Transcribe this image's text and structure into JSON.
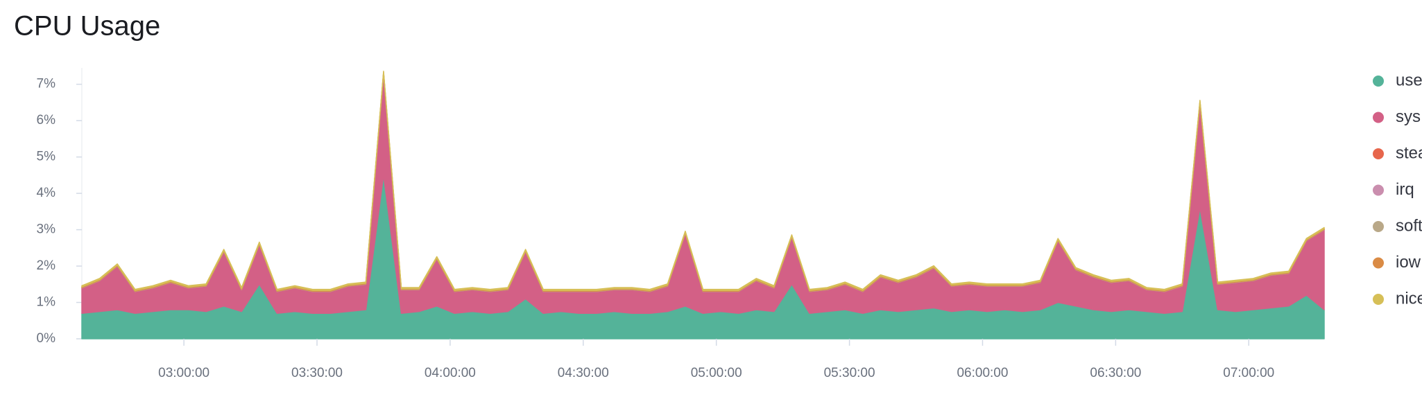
{
  "chart_data": {
    "type": "stacked-area",
    "title": "CPU Usage",
    "x": [
      "02:37:00",
      "02:41:00",
      "02:45:00",
      "02:49:00",
      "02:53:00",
      "02:57:00",
      "03:01:00",
      "03:05:00",
      "03:09:00",
      "03:13:00",
      "03:17:00",
      "03:21:00",
      "03:25:00",
      "03:29:00",
      "03:33:00",
      "03:37:00",
      "03:41:00",
      "03:45:00",
      "03:49:00",
      "03:53:00",
      "03:57:00",
      "04:01:00",
      "04:05:00",
      "04:09:00",
      "04:13:00",
      "04:17:00",
      "04:21:00",
      "04:25:00",
      "04:29:00",
      "04:33:00",
      "04:37:00",
      "04:41:00",
      "04:45:00",
      "04:49:00",
      "04:53:00",
      "04:57:00",
      "05:01:00",
      "05:05:00",
      "05:09:00",
      "05:13:00",
      "05:17:00",
      "05:21:00",
      "05:25:00",
      "05:29:00",
      "05:33:00",
      "05:37:00",
      "05:41:00",
      "05:45:00",
      "05:49:00",
      "05:53:00",
      "05:57:00",
      "06:01:00",
      "06:05:00",
      "06:09:00",
      "06:13:00",
      "06:17:00",
      "06:21:00",
      "06:25:00",
      "06:29:00",
      "06:33:00",
      "06:37:00",
      "06:41:00",
      "06:45:00",
      "06:49:00",
      "06:53:00",
      "06:57:00",
      "07:01:00",
      "07:05:00",
      "07:09:00",
      "07:13:00",
      "07:17:00"
    ],
    "xlim": [
      "02:37:00",
      "07:17:00"
    ],
    "xticks": [
      "03:00:00",
      "03:30:00",
      "04:00:00",
      "04:30:00",
      "05:00:00",
      "05:30:00",
      "06:00:00",
      "06:30:00",
      "07:00:00"
    ],
    "ylim": [
      0,
      7.45
    ],
    "yticks": [
      {
        "value": 0,
        "label": "0%"
      },
      {
        "value": 1,
        "label": "1%"
      },
      {
        "value": 2,
        "label": "2%"
      },
      {
        "value": 3,
        "label": "3%"
      },
      {
        "value": 4,
        "label": "4%"
      },
      {
        "value": 5,
        "label": "5%"
      },
      {
        "value": 6,
        "label": "6%"
      },
      {
        "value": 7,
        "label": "7%"
      }
    ],
    "stacked": true,
    "series": [
      {
        "name": "use",
        "color": "#54b399",
        "values": [
          0.7,
          0.75,
          0.8,
          0.7,
          0.75,
          0.8,
          0.8,
          0.75,
          0.9,
          0.75,
          1.5,
          0.7,
          0.75,
          0.7,
          0.7,
          0.75,
          0.8,
          4.5,
          0.7,
          0.75,
          0.9,
          0.7,
          0.75,
          0.7,
          0.75,
          1.1,
          0.7,
          0.75,
          0.7,
          0.7,
          0.75,
          0.7,
          0.7,
          0.75,
          0.9,
          0.7,
          0.75,
          0.7,
          0.8,
          0.75,
          1.5,
          0.7,
          0.75,
          0.8,
          0.7,
          0.8,
          0.75,
          0.8,
          0.85,
          0.75,
          0.8,
          0.75,
          0.8,
          0.75,
          0.8,
          1.0,
          0.9,
          0.8,
          0.75,
          0.8,
          0.75,
          0.7,
          0.75,
          3.6,
          0.8,
          0.75,
          0.8,
          0.85,
          0.9,
          1.2,
          0.8
        ]
      },
      {
        "name": "sys",
        "color": "#d36086",
        "values": [
          0.7,
          0.85,
          1.2,
          0.6,
          0.65,
          0.75,
          0.6,
          0.7,
          1.5,
          0.6,
          1.1,
          0.6,
          0.65,
          0.6,
          0.6,
          0.7,
          0.7,
          2.8,
          0.65,
          0.6,
          1.3,
          0.6,
          0.6,
          0.6,
          0.6,
          1.3,
          0.6,
          0.55,
          0.6,
          0.6,
          0.6,
          0.65,
          0.6,
          0.7,
          2.0,
          0.6,
          0.55,
          0.6,
          0.8,
          0.65,
          1.3,
          0.6,
          0.6,
          0.7,
          0.6,
          0.9,
          0.8,
          0.9,
          1.1,
          0.7,
          0.7,
          0.7,
          0.65,
          0.7,
          0.75,
          1.7,
          1.0,
          0.9,
          0.8,
          0.8,
          0.6,
          0.6,
          0.7,
          2.9,
          0.7,
          0.8,
          0.8,
          0.9,
          0.9,
          1.5,
          2.2
        ]
      },
      {
        "name": "stea",
        "color": "#e7664c",
        "values": [
          0,
          0,
          0,
          0,
          0,
          0,
          0,
          0,
          0,
          0,
          0,
          0,
          0,
          0,
          0,
          0,
          0,
          0,
          0,
          0,
          0,
          0,
          0,
          0,
          0,
          0,
          0,
          0,
          0,
          0,
          0,
          0,
          0,
          0,
          0,
          0,
          0,
          0,
          0,
          0,
          0,
          0,
          0,
          0,
          0,
          0,
          0,
          0,
          0,
          0,
          0,
          0,
          0,
          0,
          0,
          0,
          0,
          0,
          0,
          0,
          0,
          0,
          0,
          0,
          0,
          0,
          0,
          0,
          0,
          0,
          0
        ]
      },
      {
        "name": "irq",
        "color": "#ca8eae",
        "values": [
          0,
          0,
          0,
          0,
          0,
          0,
          0,
          0,
          0,
          0,
          0,
          0,
          0,
          0,
          0,
          0,
          0,
          0,
          0,
          0,
          0,
          0,
          0,
          0,
          0,
          0,
          0,
          0,
          0,
          0,
          0,
          0,
          0,
          0,
          0,
          0,
          0,
          0,
          0,
          0,
          0,
          0,
          0,
          0,
          0,
          0,
          0,
          0,
          0,
          0,
          0,
          0,
          0,
          0,
          0,
          0,
          0,
          0,
          0,
          0,
          0,
          0,
          0,
          0,
          0,
          0,
          0,
          0,
          0,
          0,
          0
        ]
      },
      {
        "name": "soft",
        "color": "#b9a888",
        "values": [
          0.01,
          0.01,
          0.01,
          0.01,
          0.01,
          0.01,
          0.01,
          0.01,
          0.01,
          0.01,
          0.01,
          0.01,
          0.01,
          0.01,
          0.01,
          0.01,
          0.01,
          0.01,
          0.01,
          0.01,
          0.01,
          0.01,
          0.01,
          0.01,
          0.01,
          0.01,
          0.01,
          0.01,
          0.01,
          0.01,
          0.01,
          0.01,
          0.01,
          0.01,
          0.01,
          0.01,
          0.01,
          0.01,
          0.01,
          0.01,
          0.01,
          0.01,
          0.01,
          0.01,
          0.01,
          0.01,
          0.01,
          0.01,
          0.01,
          0.01,
          0.01,
          0.01,
          0.01,
          0.01,
          0.01,
          0.01,
          0.01,
          0.01,
          0.01,
          0.01,
          0.01,
          0.01,
          0.01,
          0.01,
          0.01,
          0.01,
          0.01,
          0.01,
          0.01,
          0.01,
          0.01
        ]
      },
      {
        "name": "iow",
        "color": "#da8b45",
        "values": [
          0.02,
          0.02,
          0.02,
          0.02,
          0.02,
          0.02,
          0.02,
          0.02,
          0.02,
          0.02,
          0.02,
          0.02,
          0.02,
          0.02,
          0.02,
          0.02,
          0.02,
          0.02,
          0.02,
          0.02,
          0.02,
          0.02,
          0.02,
          0.02,
          0.02,
          0.02,
          0.02,
          0.02,
          0.02,
          0.02,
          0.02,
          0.02,
          0.02,
          0.02,
          0.02,
          0.02,
          0.02,
          0.02,
          0.02,
          0.02,
          0.02,
          0.02,
          0.02,
          0.02,
          0.02,
          0.02,
          0.02,
          0.02,
          0.02,
          0.02,
          0.02,
          0.02,
          0.02,
          0.02,
          0.02,
          0.02,
          0.02,
          0.02,
          0.02,
          0.02,
          0.02,
          0.02,
          0.02,
          0.02,
          0.02,
          0.02,
          0.02,
          0.02,
          0.02,
          0.02,
          0.02
        ]
      },
      {
        "name": "nice",
        "color": "#d6bf57",
        "values": [
          0.03,
          0.03,
          0.03,
          0.03,
          0.03,
          0.03,
          0.03,
          0.03,
          0.03,
          0.03,
          0.03,
          0.03,
          0.03,
          0.03,
          0.03,
          0.03,
          0.03,
          0.03,
          0.03,
          0.03,
          0.03,
          0.03,
          0.03,
          0.03,
          0.03,
          0.03,
          0.03,
          0.03,
          0.03,
          0.03,
          0.03,
          0.03,
          0.03,
          0.03,
          0.03,
          0.03,
          0.03,
          0.03,
          0.03,
          0.03,
          0.03,
          0.03,
          0.03,
          0.03,
          0.03,
          0.03,
          0.03,
          0.03,
          0.03,
          0.03,
          0.03,
          0.03,
          0.03,
          0.03,
          0.03,
          0.03,
          0.03,
          0.03,
          0.03,
          0.03,
          0.03,
          0.03,
          0.03,
          0.03,
          0.03,
          0.03,
          0.03,
          0.03,
          0.03,
          0.03,
          0.03
        ]
      }
    ]
  }
}
